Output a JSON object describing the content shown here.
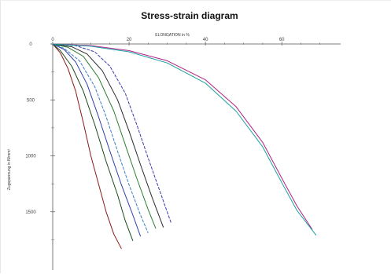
{
  "chart_data": {
    "type": "line",
    "title": "Stress-strain diagram",
    "xlabel": "ELONGATION in %",
    "ylabel": "Zugspannung in N/mm²",
    "x_ticks": [
      "0",
      "20",
      "40",
      "60"
    ],
    "y_ticks": [
      "0",
      "500",
      "1000",
      "1500"
    ],
    "xlim": [
      0,
      75
    ],
    "ylim": [
      0,
      2000
    ],
    "x_axis_position": "top",
    "y_axis_direction": "downward",
    "grid": false,
    "legend": "none",
    "series": [
      {
        "color": "#8b1a1a",
        "points": [
          [
            0,
            0
          ],
          [
            2,
            80
          ],
          [
            4,
            220
          ],
          [
            6,
            420
          ],
          [
            8,
            700
          ],
          [
            10,
            1000
          ],
          [
            12,
            1250
          ],
          [
            14,
            1500
          ],
          [
            16,
            1700
          ],
          [
            18,
            1830
          ]
        ]
      },
      {
        "color": "#1a4a1a",
        "points": [
          [
            0,
            0
          ],
          [
            2,
            60
          ],
          [
            5,
            200
          ],
          [
            8,
            420
          ],
          [
            11,
            720
          ],
          [
            14,
            1050
          ],
          [
            17,
            1350
          ],
          [
            19,
            1580
          ],
          [
            21,
            1760
          ]
        ]
      },
      {
        "color": "#2c3fae",
        "points": [
          [
            0,
            0
          ],
          [
            3,
            50
          ],
          [
            6,
            160
          ],
          [
            9,
            360
          ],
          [
            12,
            650
          ],
          [
            15,
            960
          ],
          [
            18,
            1260
          ],
          [
            21,
            1530
          ],
          [
            23,
            1720
          ]
        ]
      },
      {
        "color": "#3b7dc4",
        "points": [
          [
            0,
            0
          ],
          [
            3,
            40
          ],
          [
            7,
            150
          ],
          [
            11,
            380
          ],
          [
            14,
            650
          ],
          [
            17,
            960
          ],
          [
            20,
            1260
          ],
          [
            23,
            1530
          ],
          [
            25,
            1690
          ]
        ]
      },
      {
        "color": "#2e7d32",
        "points": [
          [
            0,
            0
          ],
          [
            4,
            30
          ],
          [
            8,
            110
          ],
          [
            12,
            300
          ],
          [
            16,
            600
          ],
          [
            19,
            900
          ],
          [
            22,
            1200
          ],
          [
            25,
            1480
          ],
          [
            27,
            1650
          ]
        ]
      },
      {
        "color": "#2a2a2a",
        "points": [
          [
            0,
            0
          ],
          [
            5,
            25
          ],
          [
            9,
            90
          ],
          [
            13,
            240
          ],
          [
            17,
            500
          ],
          [
            20,
            780
          ],
          [
            23,
            1080
          ],
          [
            26,
            1370
          ],
          [
            29,
            1640
          ]
        ]
      },
      {
        "color": "#3a3ab0",
        "points": [
          [
            0,
            0
          ],
          [
            6,
            15
          ],
          [
            11,
            70
          ],
          [
            15,
            200
          ],
          [
            19,
            440
          ],
          [
            22,
            720
          ],
          [
            25,
            1020
          ],
          [
            28,
            1310
          ],
          [
            31,
            1600
          ]
        ]
      },
      {
        "color": "#b0208a",
        "points": [
          [
            0,
            0
          ],
          [
            10,
            15
          ],
          [
            20,
            60
          ],
          [
            30,
            150
          ],
          [
            40,
            320
          ],
          [
            48,
            560
          ],
          [
            55,
            880
          ],
          [
            60,
            1200
          ],
          [
            64,
            1450
          ],
          [
            68,
            1660
          ]
        ]
      },
      {
        "color": "#1aa0a0",
        "points": [
          [
            0,
            0
          ],
          [
            10,
            20
          ],
          [
            20,
            70
          ],
          [
            30,
            170
          ],
          [
            40,
            350
          ],
          [
            48,
            600
          ],
          [
            55,
            920
          ],
          [
            60,
            1240
          ],
          [
            64,
            1490
          ],
          [
            69,
            1710
          ]
        ]
      }
    ]
  }
}
